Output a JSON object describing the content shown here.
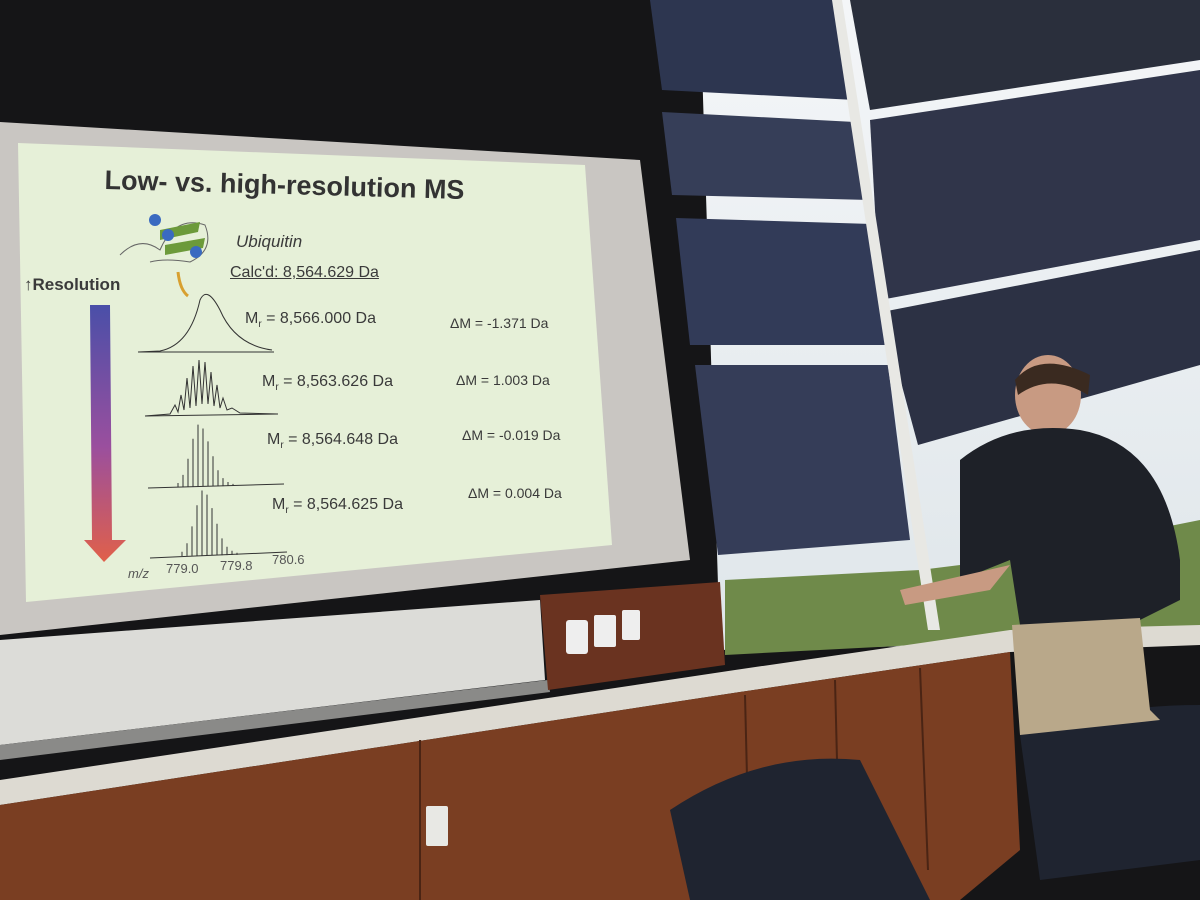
{
  "slide": {
    "title": "Low- vs. high-resolution MS",
    "protein_name": "Ubiquitin",
    "calculated_mass": "Calc'd: 8,564.629 Da",
    "resolution_label": "↑Resolution",
    "rows": [
      {
        "mr_prefix": "M",
        "mr_sub": "r",
        "mr_value": " = 8,566.000 Da",
        "delta": "ΔM = -1.371 Da"
      },
      {
        "mr_prefix": "M",
        "mr_sub": "r",
        "mr_value": " = 8,563.626 Da",
        "delta": "ΔM = 1.003 Da"
      },
      {
        "mr_prefix": "M",
        "mr_sub": "r",
        "mr_value": " = 8,564.648 Da",
        "delta": "ΔM = -0.019 Da"
      },
      {
        "mr_prefix": "M",
        "mr_sub": "r",
        "mr_value": " = 8,564.625 Da",
        "delta": "ΔM = 0.004 Da"
      }
    ],
    "axis_label": "m/z",
    "axis_ticks": [
      "779.0",
      "779.8",
      "780.6"
    ]
  },
  "colors": {
    "slide_bg": "#e6f0d8",
    "arrow_top": "#4a4fa8",
    "arrow_bottom": "#e0604a",
    "shade": "#2a3042",
    "cabinet": "#7a3e22"
  }
}
